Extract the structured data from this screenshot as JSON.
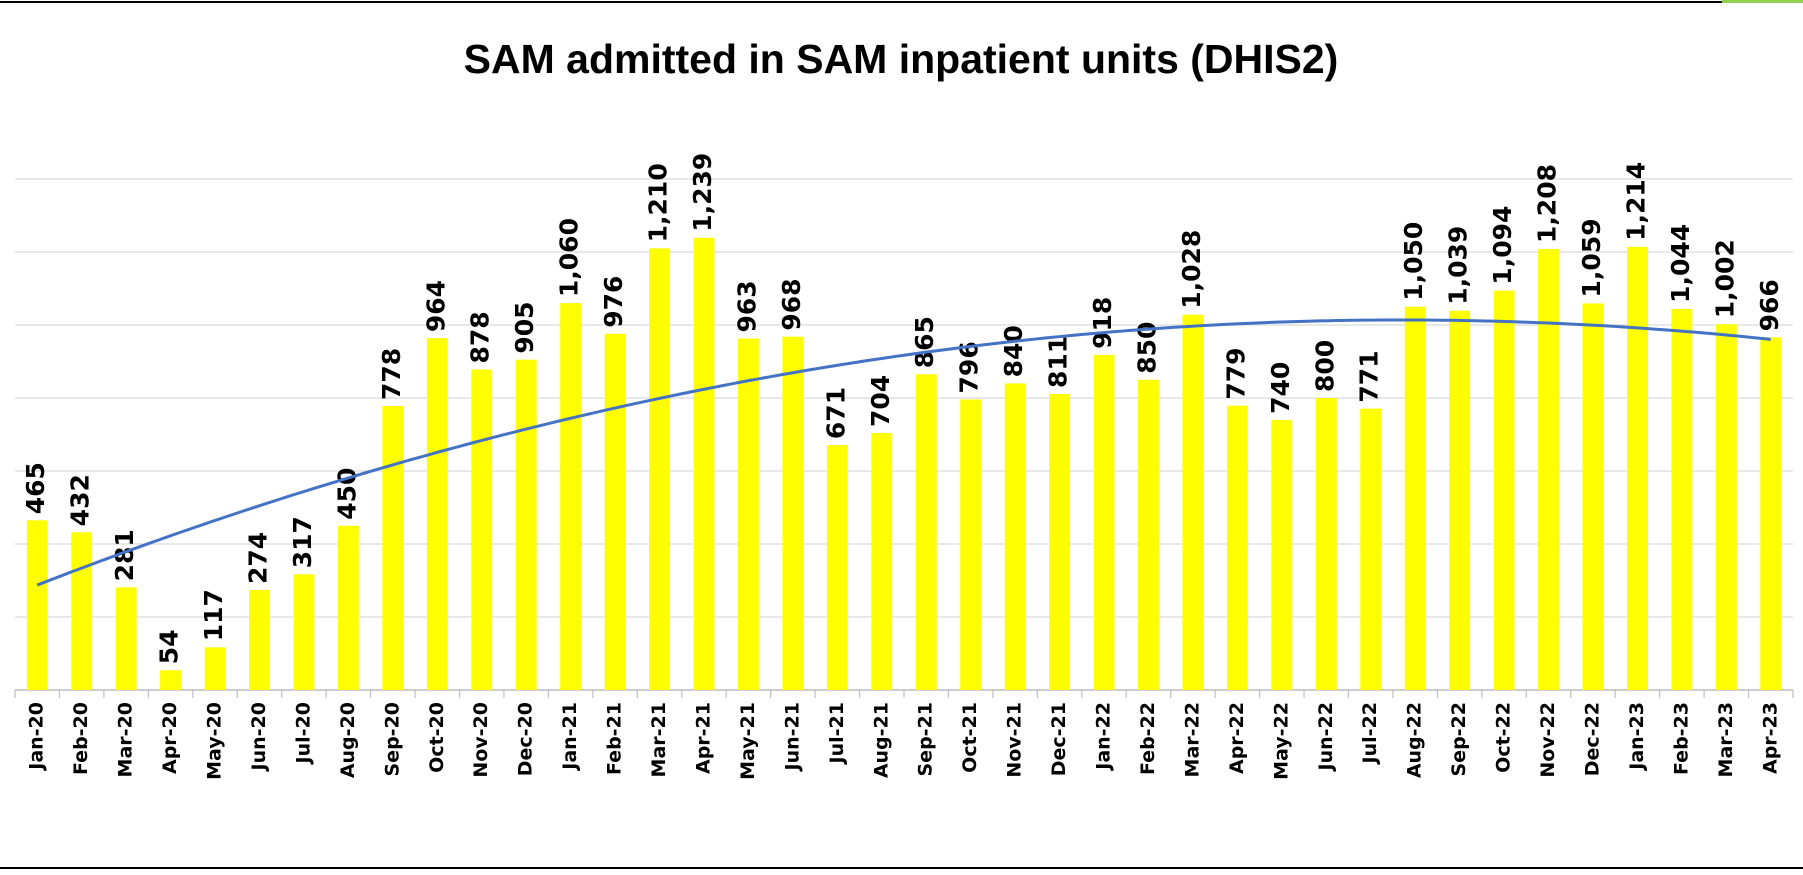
{
  "chart_data": {
    "type": "bar",
    "title": "SAM admitted in SAM inpatient units (DHIS2)",
    "categories": [
      "Jan-20",
      "Feb-20",
      "Mar-20",
      "Apr-20",
      "May-20",
      "Jun-20",
      "Jul-20",
      "Aug-20",
      "Sep-20",
      "Oct-20",
      "Nov-20",
      "Dec-20",
      "Jan-21",
      "Feb-21",
      "Mar-21",
      "Apr-21",
      "May-21",
      "Jun-21",
      "Jul-21",
      "Aug-21",
      "Sep-21",
      "Oct-21",
      "Nov-21",
      "Dec-21",
      "Jan-22",
      "Feb-22",
      "Mar-22",
      "Apr-22",
      "May-22",
      "Jun-22",
      "Jul-22",
      "Aug-22",
      "Sep-22",
      "Oct-22",
      "Nov-22",
      "Dec-22",
      "Jan-23",
      "Feb-23",
      "Mar-23",
      "Apr-23"
    ],
    "values": [
      465,
      432,
      281,
      54,
      117,
      274,
      317,
      450,
      778,
      964,
      878,
      905,
      1060,
      976,
      1210,
      1239,
      963,
      968,
      671,
      704,
      865,
      796,
      840,
      811,
      918,
      850,
      1028,
      779,
      740,
      800,
      771,
      1050,
      1039,
      1094,
      1208,
      1059,
      1214,
      1044,
      1002,
      966
    ],
    "value_labels": [
      "465",
      "432",
      "281",
      "54",
      "117",
      "274",
      "317",
      "450",
      "778",
      "964",
      "878",
      "905",
      "1,060",
      "976",
      "1,210",
      "1,239",
      "963",
      "968",
      "671",
      "704",
      "865",
      "796",
      "840",
      "811",
      "918",
      "850",
      "1,028",
      "779",
      "740",
      "800",
      "771",
      "1,050",
      "1,039",
      "1,094",
      "1,208",
      "1,059",
      "1,214",
      "1,044",
      "1,002",
      "966"
    ],
    "color": "#ffff00",
    "trendline": {
      "type": "polynomial",
      "order": 2,
      "color": "#4472c4"
    },
    "ylim": [
      0,
      1400
    ],
    "yticks": [
      0,
      200,
      400,
      600,
      800,
      1000,
      1200,
      1400
    ],
    "grid": true,
    "ytick_labels": false
  }
}
